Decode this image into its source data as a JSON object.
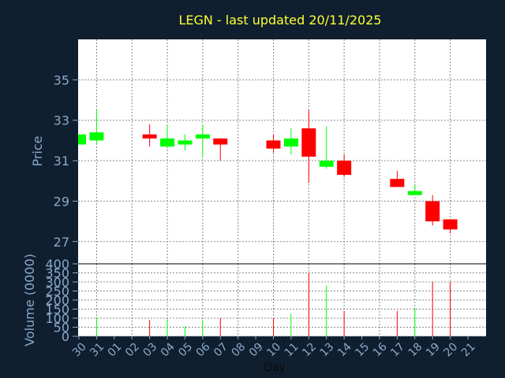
{
  "chart_data": {
    "type": "candlestick",
    "title": "LEGN - last updated 20/11/2025",
    "xlabel": "Day",
    "price_ylabel": "Price",
    "volume_ylabel": "Volume (0000)",
    "price_yticks": [
      27,
      29,
      31,
      33,
      35
    ],
    "price_ylim": [
      25.9,
      37.0
    ],
    "volume_yticks": [
      0,
      50,
      100,
      150,
      200,
      250,
      300,
      350,
      400
    ],
    "volume_ylim": [
      0,
      400
    ],
    "x_ticks": [
      "30",
      "31",
      "01",
      "02",
      "03",
      "04",
      "05",
      "06",
      "07",
      "08",
      "09",
      "10",
      "11",
      "12",
      "13",
      "14",
      "15",
      "16",
      "17",
      "18",
      "19",
      "20",
      "21"
    ],
    "grid": true,
    "colors": {
      "background": "#0f1f30",
      "panel": "#ffffff",
      "up": "#00ff00",
      "down": "#ff0000",
      "grid": "#888888",
      "title": "#ffff33",
      "axis_text": "#8aa8c8"
    },
    "candles": [
      {
        "day": "30",
        "open": 31.8,
        "high": 32.3,
        "low": 31.8,
        "close": 32.3,
        "volume": 0
      },
      {
        "day": "31",
        "open": 32.0,
        "high": 33.5,
        "low": 31.8,
        "close": 32.4,
        "volume": 105
      },
      {
        "day": "03",
        "open": 32.3,
        "high": 32.8,
        "low": 31.7,
        "close": 32.1,
        "volume": 90
      },
      {
        "day": "04",
        "open": 31.7,
        "high": 32.8,
        "low": 31.6,
        "close": 32.1,
        "volume": 95
      },
      {
        "day": "05",
        "open": 31.8,
        "high": 32.3,
        "low": 31.5,
        "close": 32.0,
        "volume": 55
      },
      {
        "day": "06",
        "open": 32.1,
        "high": 32.8,
        "low": 31.2,
        "close": 32.3,
        "volume": 90
      },
      {
        "day": "07",
        "open": 32.1,
        "high": 32.1,
        "low": 31.0,
        "close": 31.8,
        "volume": 100
      },
      {
        "day": "10",
        "open": 32.0,
        "high": 32.3,
        "low": 31.4,
        "close": 31.6,
        "volume": 100
      },
      {
        "day": "11",
        "open": 31.7,
        "high": 32.6,
        "low": 31.3,
        "close": 32.1,
        "volume": 125
      },
      {
        "day": "12",
        "open": 32.6,
        "high": 33.5,
        "low": 29.9,
        "close": 31.2,
        "volume": 350
      },
      {
        "day": "13",
        "open": 30.7,
        "high": 32.7,
        "low": 30.6,
        "close": 31.0,
        "volume": 280
      },
      {
        "day": "14",
        "open": 31.0,
        "high": 31.3,
        "low": 30.2,
        "close": 30.3,
        "volume": 140
      },
      {
        "day": "17",
        "open": 30.1,
        "high": 30.5,
        "low": 29.7,
        "close": 29.7,
        "volume": 140
      },
      {
        "day": "18",
        "open": 29.3,
        "high": 29.8,
        "low": 29.3,
        "close": 29.5,
        "volume": 155
      },
      {
        "day": "19",
        "open": 29.0,
        "high": 29.3,
        "low": 27.8,
        "close": 28.0,
        "volume": 300
      },
      {
        "day": "20",
        "open": 28.1,
        "high": 28.1,
        "low": 27.4,
        "close": 27.6,
        "volume": 300
      }
    ]
  }
}
